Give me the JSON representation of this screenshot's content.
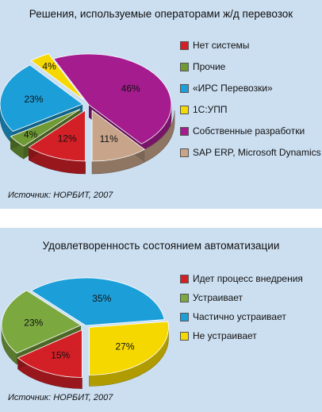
{
  "chart_data": [
    {
      "type": "pie",
      "title": "Решения, используемые операторами ж/д перевозок",
      "source": "Источник: НОРБИТ, 2007",
      "slices": [
        {
          "label": "Нет системы",
          "value": 12,
          "value_label": "12%",
          "color": "#d32027"
        },
        {
          "label": "Прочие",
          "value": 4,
          "value_label": "4%",
          "color": "#6f9a35"
        },
        {
          "label": "«ИРС Перевозки»",
          "value": 23,
          "value_label": "23%",
          "color": "#1c9fd9"
        },
        {
          "label": "1С:УПП",
          "value": 4,
          "value_label": "4%",
          "color": "#f5d800"
        },
        {
          "label": "Собственные разработки",
          "value": 46,
          "value_label": "46%",
          "color": "#a51c8f"
        },
        {
          "label": "SAP ERP, Microsoft Dynamics",
          "value": 11,
          "value_label": "11%",
          "color": "#c7a48a"
        }
      ],
      "legend_position": "right"
    },
    {
      "type": "pie",
      "title": "Удовлетворенность состоянием автоматизации",
      "source": "Источник: НОРБИТ, 2007",
      "slices": [
        {
          "label": "Идет процесс внедрения",
          "value": 15,
          "value_label": "15%",
          "color": "#d32027"
        },
        {
          "label": "Устраивает",
          "value": 23,
          "value_label": "23%",
          "color": "#7ba83f"
        },
        {
          "label": "Частично устраивает",
          "value": 35,
          "value_label": "35%",
          "color": "#1c9fd9"
        },
        {
          "label": "Не устраивает",
          "value": 27,
          "value_label": "27%",
          "color": "#f5d800"
        }
      ],
      "legend_position": "right"
    }
  ]
}
